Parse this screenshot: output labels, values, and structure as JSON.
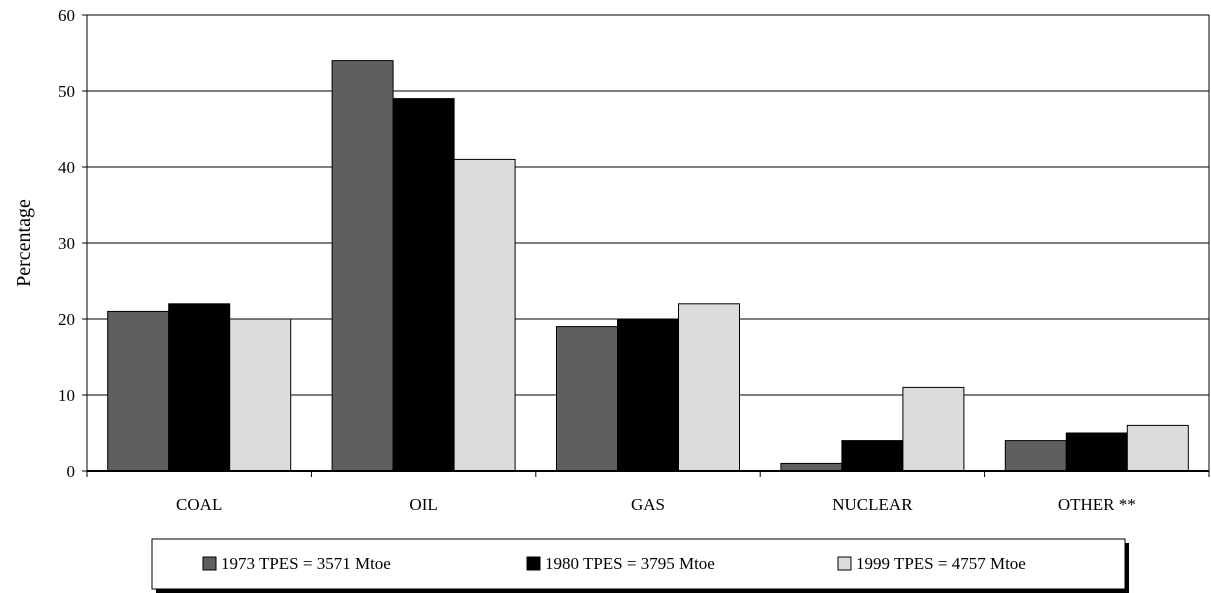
{
  "chart_data": {
    "type": "bar",
    "title": "",
    "xlabel": "",
    "ylabel": "Percentage",
    "ylim": [
      0,
      60
    ],
    "yticks": [
      0,
      10,
      20,
      30,
      40,
      50,
      60
    ],
    "grid": true,
    "legend_position": "bottom",
    "categories": [
      "COAL",
      "OIL",
      "GAS",
      "NUCLEAR",
      "OTHER **"
    ],
    "series": [
      {
        "name": "1973 TPES = 3571 Mtoe",
        "color": "#5f5f5f",
        "values": [
          21,
          54,
          19,
          1,
          4
        ]
      },
      {
        "name": "1980 TPES = 3795 Mtoe",
        "color": "#000000",
        "values": [
          22,
          49,
          20,
          4,
          5
        ]
      },
      {
        "name": "1999 TPES = 4757 Mtoe",
        "color": "#dcdcdc",
        "values": [
          20,
          41,
          22,
          11,
          6
        ]
      }
    ]
  }
}
